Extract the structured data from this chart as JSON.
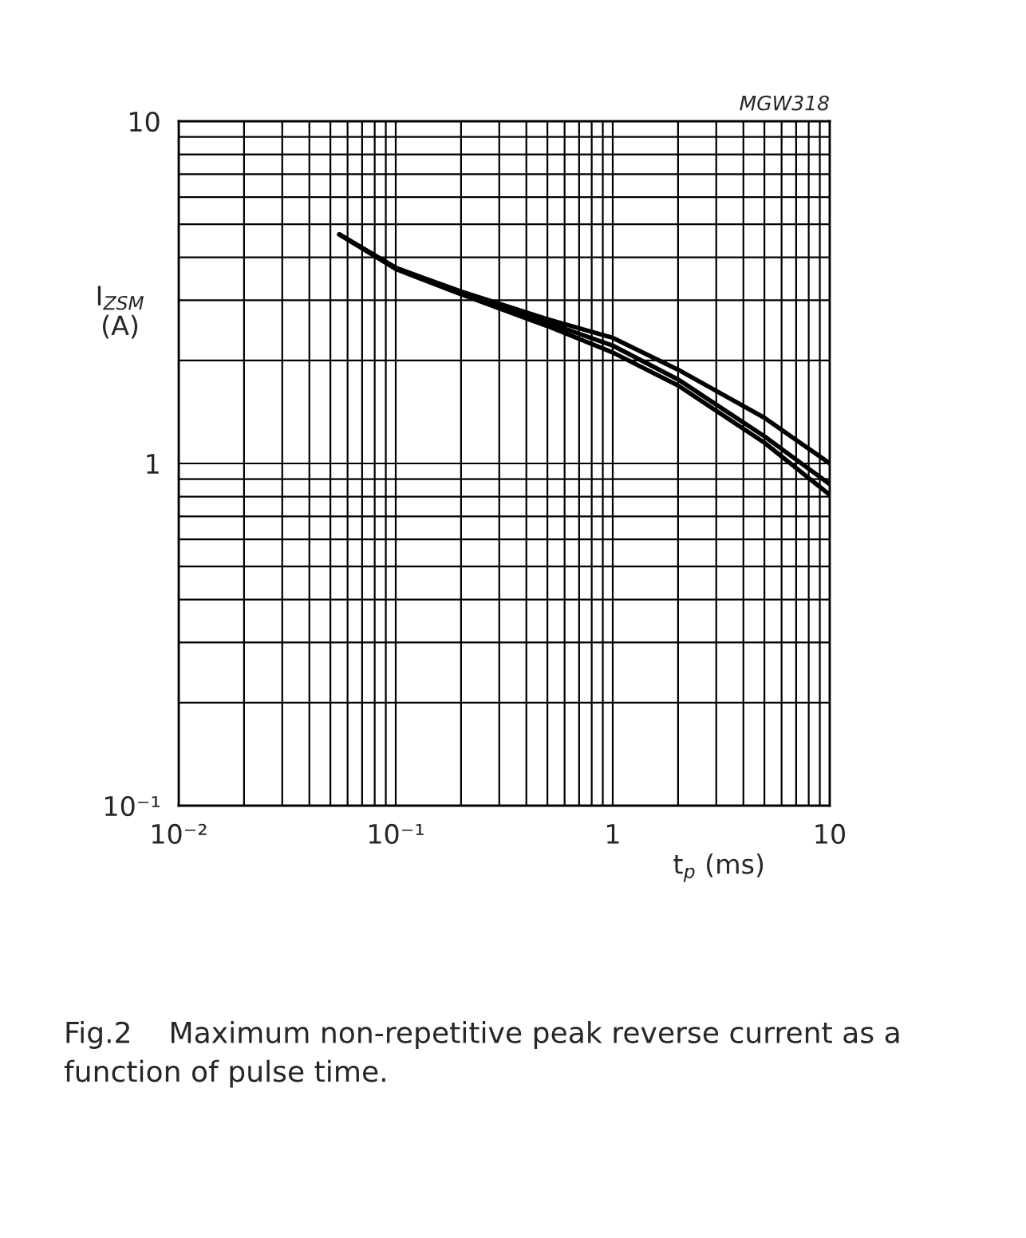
{
  "chart_data": {
    "type": "line",
    "xlabel": "t$_{p}$ (ms)",
    "ylabel": "I$_{ZSM}$\n(A)",
    "annotations": [
      "MGW318",
      "Fig.2    Maximum non-repetitive peak reverse current as a function of pulse time."
    ],
    "log": "xy",
    "grid": true,
    "legend": false,
    "marker": "none",
    "line_style": "solid",
    "xlim": [
      0.01,
      10
    ],
    "ylim": [
      0.1,
      10
    ],
    "xticks": [
      {
        "value": 0.01,
        "label": "10⁻²"
      },
      {
        "value": 0.1,
        "label": "10⁻¹"
      },
      1,
      10
    ],
    "yticks": [
      {
        "value": 0.1,
        "label": "10⁻¹"
      },
      1,
      10
    ],
    "series": [
      {
        "color": "#000000",
        "x": [
          0.055,
          0.1,
          0.2,
          0.5,
          1,
          2,
          5,
          10
        ],
        "values": [
          4.67,
          3.73,
          3.18,
          2.64,
          2.33,
          1.88,
          1.36,
          1.0
        ]
      },
      {
        "color": "#000000",
        "x": [
          0.055,
          0.1,
          0.2,
          0.5,
          1,
          2,
          5,
          10
        ],
        "values": [
          4.67,
          3.73,
          3.16,
          2.58,
          2.21,
          1.76,
          1.2,
          0.87
        ]
      },
      {
        "color": "#000000",
        "x": [
          0.055,
          0.1,
          0.2,
          0.5,
          1,
          2,
          5,
          10
        ],
        "values": [
          4.67,
          3.7,
          3.12,
          2.52,
          2.11,
          1.69,
          1.15,
          0.81
        ]
      }
    ]
  }
}
